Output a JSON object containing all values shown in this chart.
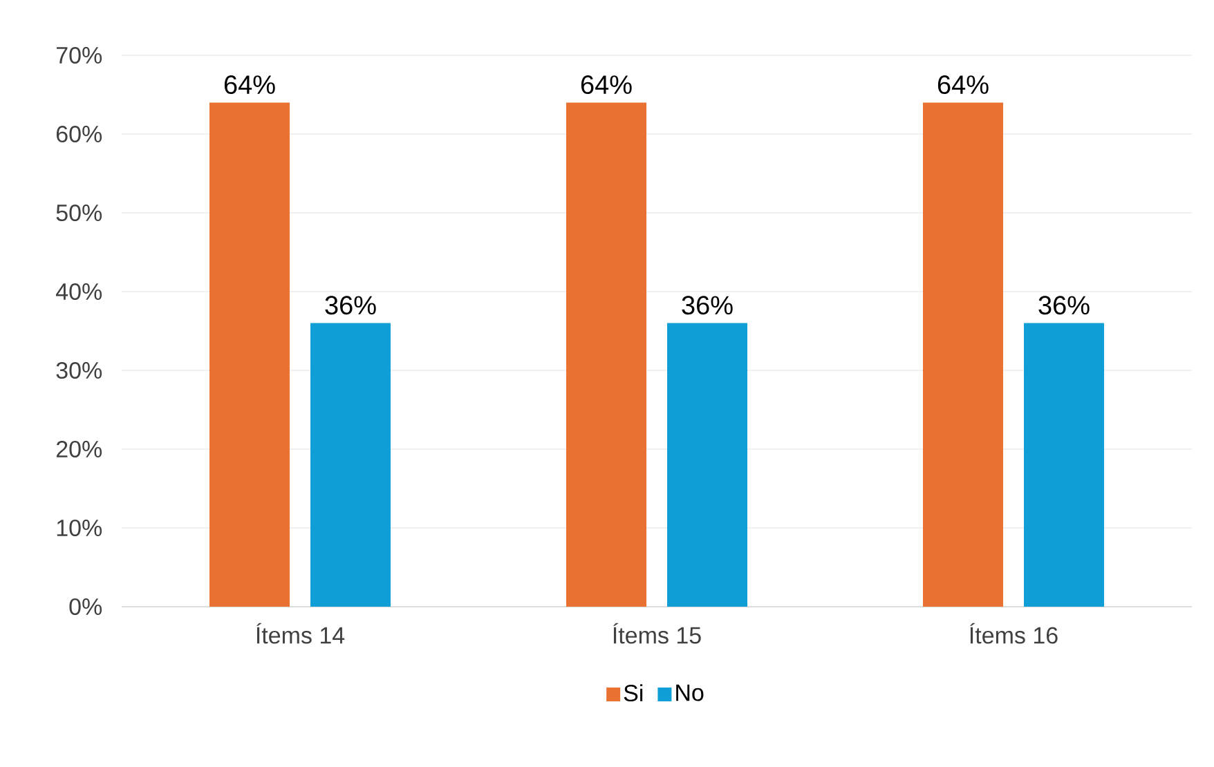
{
  "chart_data": {
    "type": "bar",
    "categories": [
      "Ítems 14",
      "Ítems 15",
      "Ítems 16"
    ],
    "series": [
      {
        "name": "Si",
        "color": "#e97132",
        "values": [
          64,
          64,
          64
        ],
        "value_labels": [
          "64%",
          "64%",
          "64%"
        ]
      },
      {
        "name": "No",
        "color": "#0f9ed5",
        "values": [
          36,
          36,
          36
        ],
        "value_labels": [
          "36%",
          "36%",
          "36%"
        ]
      }
    ],
    "ylim": [
      0,
      70
    ],
    "yticks": [
      {
        "value": 0,
        "label": "0%"
      },
      {
        "value": 10,
        "label": "10%"
      },
      {
        "value": 20,
        "label": "20%"
      },
      {
        "value": 30,
        "label": "30%"
      },
      {
        "value": 40,
        "label": "40%"
      },
      {
        "value": 50,
        "label": "50%"
      },
      {
        "value": 60,
        "label": "60%"
      },
      {
        "value": 70,
        "label": "70%"
      }
    ],
    "grid": "y",
    "legend": "bottom"
  }
}
